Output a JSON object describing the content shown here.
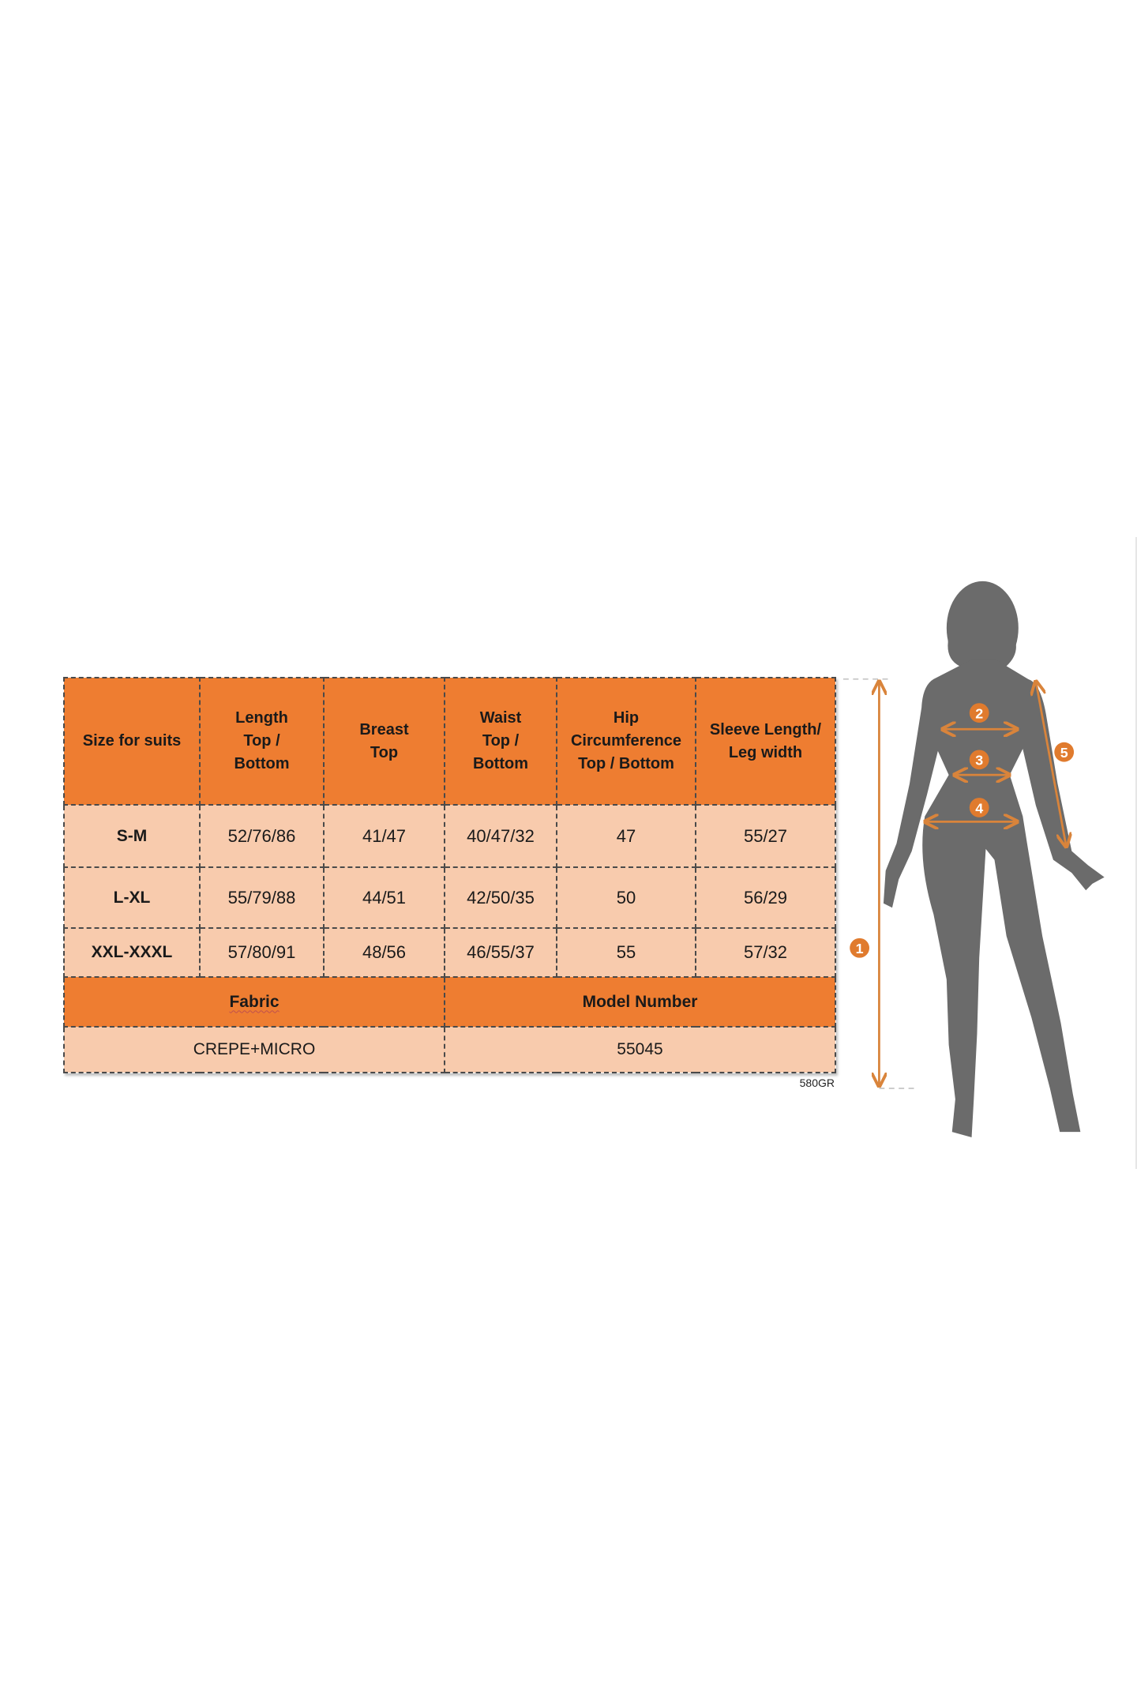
{
  "table": {
    "headers": [
      "Size for suits",
      "Length\nTop /\nBottom",
      "Breast\nTop",
      "Waist\nTop /\nBottom",
      "Hip\nCircumference\nTop / Bottom",
      "Sleeve Length/\nLeg width"
    ],
    "rows": [
      [
        "S-M",
        "52/76/86",
        "41/47",
        "40/47/32",
        "47",
        "55/27"
      ],
      [
        "L-XL",
        "55/79/88",
        "44/51",
        "42/50/35",
        "50",
        "56/29"
      ],
      [
        "XXL-XXXL",
        "57/80/91",
        "48/56",
        "46/55/37",
        "55",
        "57/32"
      ]
    ],
    "fabric_label": "Fabric",
    "model_number_label": "Model Number",
    "fabric_value": "CREPE+MICRO",
    "model_number_value": "55045"
  },
  "code": "580GR",
  "figure": {
    "markers": [
      "1",
      "2",
      "3",
      "4",
      "5"
    ]
  },
  "colors": {
    "header_orange": "#EE7D31",
    "cell_peach": "#F8CBAD",
    "silhouette_gray": "#6b6b6b",
    "arrow_orange": "#D9843B"
  }
}
